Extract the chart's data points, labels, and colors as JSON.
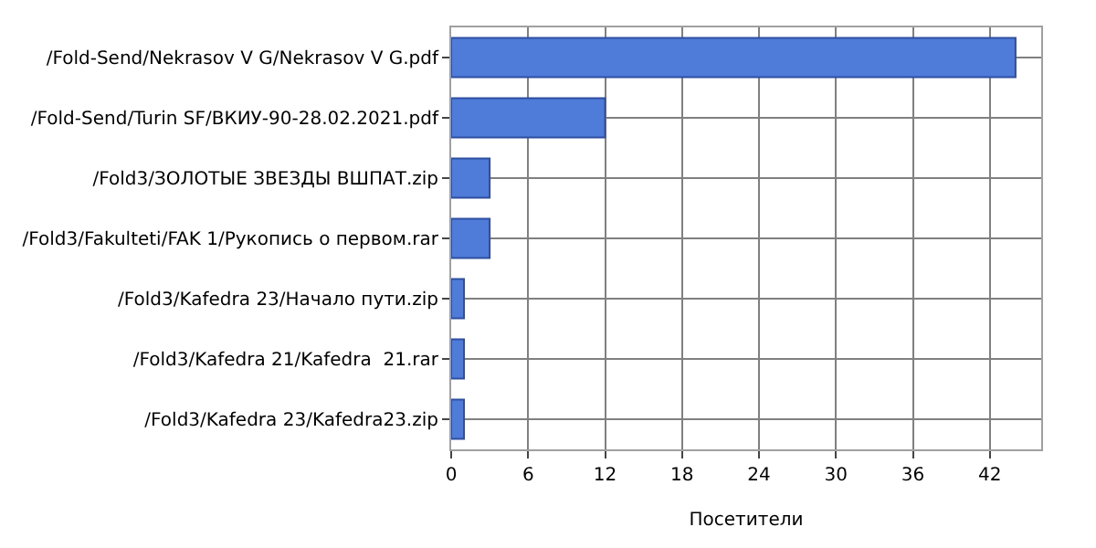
{
  "chart_data": {
    "type": "bar",
    "orientation": "horizontal",
    "xlabel": "Посетители",
    "categories": [
      "/Fold-Send/Nekrasov V G/Nekrasov V G.pdf",
      "/Fold-Send/Turin SF/ВКИУ-90-28.02.2021.pdf",
      "/Fold3/ЗОЛОТЫЕ ЗВЕЗДЫ ВШПАТ.zip",
      "/Fold3/Fakulteti/FAK 1/Рукопись о первом.rar",
      "/Fold3/Kafedra 23/Начало пути.zip",
      "/Fold3/Kafedra 21/Kafedra  21.rar",
      "/Fold3/Kafedra 23/Kafedra23.zip"
    ],
    "values": [
      44,
      12,
      3,
      3,
      1,
      1,
      1
    ],
    "color": "#4f7bd9",
    "xlim": [
      0,
      46
    ],
    "xticks": [
      0,
      6,
      12,
      18,
      24,
      30,
      36,
      42
    ],
    "grid": true,
    "legend": false
  }
}
